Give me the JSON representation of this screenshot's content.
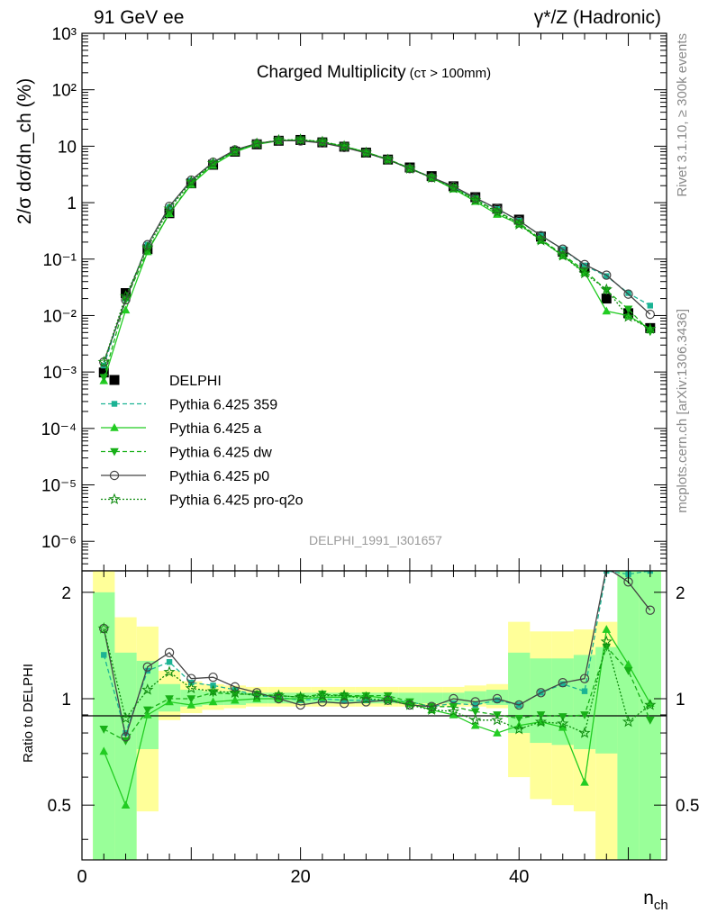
{
  "header": {
    "left": "91 GeV ee",
    "right": "γ*/Z (Hadronic)"
  },
  "plot_title": {
    "main": "Charged Multiplicity",
    "suffix": "(cτ > 100mm)"
  },
  "side_labels": {
    "rivet": "Rivet 3.1.10, ≥ 300k events",
    "mcplots": "mcplots.cern.ch [arXiv:1306.3436]"
  },
  "analysis_id": "DELPHI_1991_I301657",
  "colors": {
    "data": "#000000",
    "p359": "#1bb394",
    "pa": "#22cc22",
    "pdw": "#18b018",
    "pp0": "#444444",
    "pq2o": "#0d8a0d",
    "band_yellow": "#ffff99",
    "band_green": "#99ff99"
  },
  "chart_data": [
    {
      "type": "scatter",
      "panel": "main",
      "ylabel": "2/σ dσ/dn_ch (%)",
      "yscale": "log",
      "ylim": [
        3e-07,
        1000
      ],
      "xlim": [
        0,
        53.5
      ],
      "ytick_labels": [
        "10⁻⁶",
        "10⁻⁵",
        "10⁻⁴",
        "10⁻³",
        "10⁻²",
        "10⁻¹",
        "1",
        "10",
        "10²",
        "10³"
      ],
      "x": [
        2,
        4,
        6,
        8,
        10,
        12,
        14,
        16,
        18,
        20,
        22,
        24,
        26,
        28,
        30,
        32,
        34,
        36,
        38,
        40,
        42,
        44,
        46,
        48,
        50,
        52
      ],
      "series": [
        {
          "name": "DELPHI",
          "key": "data",
          "values": [
            0.00098,
            0.025,
            0.15,
            0.65,
            2.2,
            4.7,
            8.0,
            10.8,
            12.5,
            12.9,
            11.7,
            9.8,
            7.7,
            5.8,
            4.2,
            2.95,
            1.95,
            1.25,
            0.78,
            0.5,
            0.25,
            0.135,
            0.07,
            0.02,
            0.011,
            0.006
          ]
        },
        {
          "name": "Pythia 6.425 359",
          "key": "p359",
          "values": [
            0.0013,
            0.02,
            0.18,
            0.83,
            2.45,
            5.1,
            8.4,
            11.0,
            12.6,
            12.7,
            11.8,
            9.7,
            7.6,
            5.75,
            4.1,
            2.8,
            1.88,
            1.2,
            0.77,
            0.48,
            0.26,
            0.15,
            0.077,
            0.05,
            0.025,
            0.015
          ]
        },
        {
          "name": "Pythia 6.425 a",
          "key": "pa",
          "values": [
            0.0007,
            0.0125,
            0.135,
            0.64,
            2.1,
            4.6,
            7.9,
            10.8,
            12.5,
            12.9,
            11.8,
            9.9,
            7.9,
            5.8,
            4.05,
            2.75,
            1.75,
            1.05,
            0.62,
            0.42,
            0.215,
            0.115,
            0.058,
            0.012,
            0.01,
            0.0058
          ]
        },
        {
          "name": "Pythia 6.425 dw",
          "key": "pdw",
          "values": [
            0.0008,
            0.019,
            0.14,
            0.65,
            2.2,
            4.9,
            8.2,
            11.1,
            12.8,
            13.0,
            12.0,
            10.0,
            7.8,
            5.9,
            4.1,
            2.8,
            1.85,
            1.15,
            0.7,
            0.44,
            0.225,
            0.12,
            0.063,
            0.028,
            0.013,
            0.0052
          ]
        },
        {
          "name": "Pythia 6.425 p0",
          "key": "pp0",
          "values": [
            0.0015,
            0.019,
            0.18,
            0.86,
            2.5,
            5.2,
            8.6,
            11.2,
            12.6,
            12.4,
            11.4,
            9.5,
            7.6,
            5.75,
            4.0,
            2.8,
            1.95,
            1.22,
            0.78,
            0.48,
            0.26,
            0.15,
            0.08,
            0.052,
            0.024,
            0.0105
          ]
        },
        {
          "name": "Pythia 6.425 pro-q2o",
          "key": "pq2o",
          "values": [
            0.0015,
            0.022,
            0.16,
            0.78,
            2.35,
            5.0,
            8.3,
            11.1,
            12.8,
            13.1,
            12.0,
            10.0,
            7.7,
            5.75,
            4.0,
            2.75,
            1.8,
            1.1,
            0.68,
            0.41,
            0.215,
            0.115,
            0.056,
            0.029,
            0.0095,
            0.0058
          ]
        }
      ]
    },
    {
      "type": "scatter",
      "panel": "ratio",
      "ylabel": "Ratio to DELPHI",
      "ylim": [
        0.35,
        2.3
      ],
      "xlim": [
        0,
        53.5
      ],
      "ytick_labels": [
        "0.5",
        "1",
        "2"
      ],
      "xlabel": "n_ch",
      "xtick_labels": [
        "0",
        "20",
        "40"
      ],
      "x": [
        2,
        4,
        6,
        8,
        10,
        12,
        14,
        16,
        18,
        20,
        22,
        24,
        26,
        28,
        30,
        32,
        34,
        36,
        38,
        40,
        42,
        44,
        46,
        48,
        50,
        52
      ],
      "bands": {
        "edges": [
          1,
          3,
          5,
          7,
          9,
          11,
          13,
          15,
          17,
          19,
          21,
          23,
          25,
          27,
          29,
          31,
          33,
          35,
          37,
          39,
          41,
          43,
          45,
          47,
          49,
          51,
          53
        ],
        "yellow": [
          [
            0.3,
            3.0
          ],
          [
            0.3,
            1.7
          ],
          [
            0.48,
            1.6
          ],
          [
            0.87,
            1.2
          ],
          [
            0.91,
            1.12
          ],
          [
            0.93,
            1.1
          ],
          [
            0.94,
            1.09
          ],
          [
            0.95,
            1.08
          ],
          [
            0.95,
            1.08
          ],
          [
            0.95,
            1.08
          ],
          [
            0.95,
            1.08
          ],
          [
            0.95,
            1.08
          ],
          [
            0.95,
            1.08
          ],
          [
            0.95,
            1.08
          ],
          [
            0.95,
            1.08
          ],
          [
            0.95,
            1.08
          ],
          [
            0.95,
            1.08
          ],
          [
            0.95,
            1.09
          ],
          [
            0.94,
            1.1
          ],
          [
            0.6,
            1.65
          ],
          [
            0.52,
            1.55
          ],
          [
            0.5,
            1.55
          ],
          [
            0.48,
            1.57
          ],
          [
            0.3,
            1.65
          ],
          [
            0.3,
            3.0
          ],
          [
            0.3,
            3.0
          ]
        ],
        "green": [
          [
            0.3,
            2.0
          ],
          [
            0.3,
            1.35
          ],
          [
            0.72,
            1.28
          ],
          [
            0.92,
            1.1
          ],
          [
            0.95,
            1.06
          ],
          [
            0.96,
            1.05
          ],
          [
            0.96,
            1.05
          ],
          [
            0.97,
            1.04
          ],
          [
            0.97,
            1.04
          ],
          [
            0.97,
            1.04
          ],
          [
            0.97,
            1.04
          ],
          [
            0.97,
            1.04
          ],
          [
            0.97,
            1.04
          ],
          [
            0.97,
            1.04
          ],
          [
            0.97,
            1.04
          ],
          [
            0.97,
            1.04
          ],
          [
            0.97,
            1.04
          ],
          [
            0.97,
            1.05
          ],
          [
            0.96,
            1.06
          ],
          [
            0.8,
            1.35
          ],
          [
            0.75,
            1.3
          ],
          [
            0.74,
            1.3
          ],
          [
            0.72,
            1.33
          ],
          [
            0.7,
            1.4
          ],
          [
            0.3,
            3.0
          ],
          [
            0.3,
            3.0
          ]
        ]
      },
      "series": [
        {
          "name": "Pythia 6.425 359",
          "key": "p359",
          "values": [
            1.33,
            0.8,
            1.2,
            1.27,
            1.11,
            1.09,
            1.06,
            1.02,
            1.01,
            0.99,
            1.0,
            0.99,
            0.99,
            0.99,
            0.98,
            0.95,
            0.97,
            0.96,
            0.99,
            0.96,
            1.04,
            1.1,
            1.05,
            2.3,
            2.25,
            2.3
          ]
        },
        {
          "name": "Pythia 6.425 a",
          "key": "pa",
          "values": [
            0.71,
            0.5,
            0.9,
            0.98,
            0.96,
            0.98,
            0.99,
            1.0,
            1.0,
            1.0,
            1.01,
            1.01,
            1.02,
            1.0,
            0.97,
            0.93,
            0.9,
            0.84,
            0.8,
            0.84,
            0.86,
            0.83,
            0.58,
            1.57,
            1.25,
            0.97
          ]
        },
        {
          "name": "Pythia 6.425 dw",
          "key": "pdw",
          "values": [
            0.82,
            0.76,
            0.93,
            1.0,
            1.0,
            1.04,
            1.03,
            1.03,
            1.02,
            1.01,
            1.03,
            1.02,
            1.02,
            1.02,
            0.98,
            0.95,
            0.95,
            0.92,
            0.9,
            0.88,
            0.9,
            0.89,
            0.9,
            1.4,
            1.2,
            0.87
          ]
        },
        {
          "name": "Pythia 6.425 p0",
          "key": "pp0",
          "values": [
            1.58,
            0.78,
            1.23,
            1.35,
            1.14,
            1.15,
            1.08,
            1.04,
            1.0,
            0.96,
            0.98,
            0.97,
            0.98,
            0.99,
            0.96,
            0.95,
            1.0,
            0.98,
            1.0,
            0.96,
            1.04,
            1.11,
            1.14,
            2.35,
            2.14,
            1.78
          ]
        },
        {
          "name": "Pythia 6.425 pro-q2o",
          "key": "pq2o",
          "values": [
            1.58,
            0.88,
            1.06,
            1.19,
            1.07,
            1.05,
            1.04,
            1.02,
            1.02,
            1.01,
            1.02,
            1.02,
            1.0,
            0.99,
            0.96,
            0.93,
            0.92,
            0.87,
            0.87,
            0.82,
            0.86,
            0.85,
            0.8,
            1.45,
            0.86,
            0.96
          ]
        }
      ]
    }
  ]
}
